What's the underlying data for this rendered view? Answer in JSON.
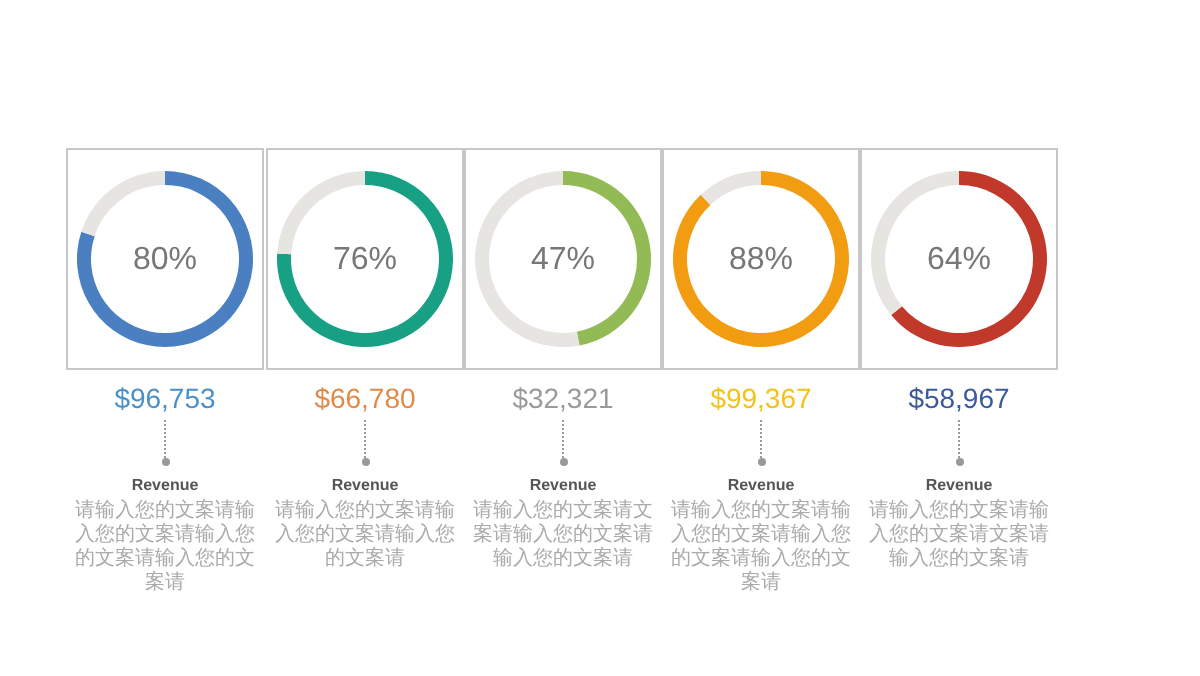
{
  "chart_data": [
    {
      "type": "donut",
      "categories": [
        null,
        null
      ],
      "values": [
        80,
        20
      ],
      "colors": [
        "#4a7fc1",
        "#e6e5e1"
      ],
      "value_labels": [
        "80%",
        null
      ],
      "annotations": [
        "$96,753",
        "Revenue",
        "请输入您的文案请输入您的文案请输入您的文案请输入您的文案请"
      ]
    },
    {
      "type": "donut",
      "categories": [
        null,
        null
      ],
      "values": [
        76,
        24
      ],
      "colors": [
        "#17a083",
        "#e6e5e1"
      ],
      "value_labels": [
        "76%",
        null
      ],
      "annotations": [
        "$66,780",
        "Revenue",
        "请输入您的文案请输入您的文案请输入您的文案请"
      ]
    },
    {
      "type": "donut",
      "categories": [
        null,
        null
      ],
      "values": [
        47,
        53
      ],
      "colors": [
        "#93bb55",
        "#e6e5e1"
      ],
      "value_labels": [
        "47%",
        null
      ],
      "annotations": [
        "$32,321",
        "Revenue",
        "请输入您的文案请文案请输入您的文案请输入您的文案请"
      ]
    },
    {
      "type": "donut",
      "categories": [
        null,
        null
      ],
      "values": [
        88,
        12
      ],
      "colors": [
        "#f29c12",
        "#e6e5e1"
      ],
      "value_labels": [
        "88%",
        null
      ],
      "annotations": [
        "$99,367",
        "Revenue",
        "请输入您的文案请输入您的文案请输入您的文案请输入您的文案请"
      ]
    },
    {
      "type": "donut",
      "categories": [
        null,
        null
      ],
      "values": [
        64,
        36
      ],
      "colors": [
        "#c0392b",
        "#e6e5e1"
      ],
      "value_labels": [
        "64%",
        null
      ],
      "annotations": [
        "$58,967",
        "Revenue",
        "请输入您的文案请输入您的文案请文案请输入您的文案请"
      ]
    }
  ]
}
